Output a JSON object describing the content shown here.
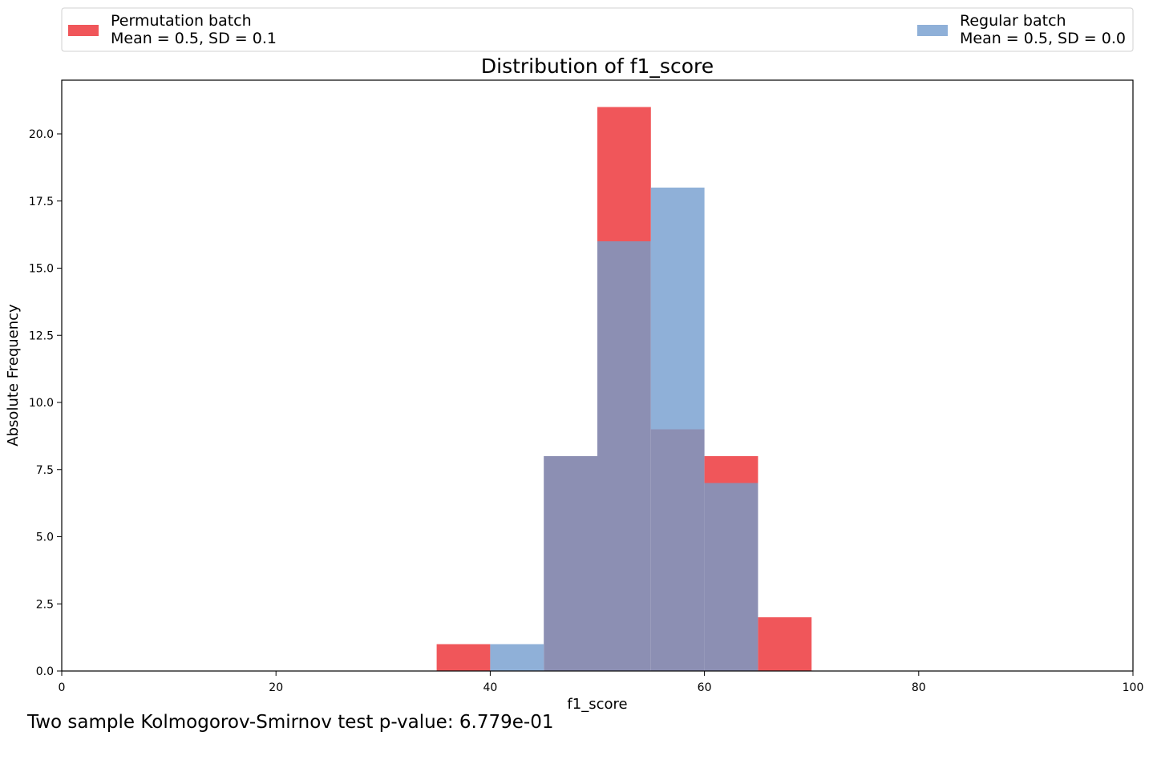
{
  "chart_data": {
    "type": "histogram",
    "title": "Distribution of f1_score",
    "xlabel": "f1_score",
    "ylabel": "Absolute Frequency",
    "xlim": [
      0,
      100
    ],
    "ylim": [
      0,
      22
    ],
    "xticks": [
      0,
      20,
      40,
      60,
      80,
      100
    ],
    "xtick_labels": [
      "0",
      "20",
      "40",
      "60",
      "80",
      "100"
    ],
    "yticks": [
      0,
      2.5,
      5,
      7.5,
      10,
      12.5,
      15,
      17.5,
      20
    ],
    "ytick_labels": [
      "0.0",
      "2.5",
      "5.0",
      "7.5",
      "10.0",
      "12.5",
      "15.0",
      "17.5",
      "20.0"
    ],
    "legend_position": "top",
    "series": [
      {
        "name": "Permutation batch",
        "stats": "Mean = 0.5, SD = 0.1",
        "color": "#f0565a",
        "bins": [
          {
            "x0": 35,
            "x1": 40,
            "count": 1
          },
          {
            "x0": 45,
            "x1": 50,
            "count": 8
          },
          {
            "x0": 50,
            "x1": 55,
            "count": 21
          },
          {
            "x0": 55,
            "x1": 60,
            "count": 9
          },
          {
            "x0": 60,
            "x1": 65,
            "count": 8
          },
          {
            "x0": 65,
            "x1": 70,
            "count": 2
          }
        ]
      },
      {
        "name": "Regular batch",
        "stats": "Mean = 0.5, SD = 0.0",
        "color": "#8fb0d8",
        "bins": [
          {
            "x0": 40,
            "x1": 45,
            "count": 1
          },
          {
            "x0": 45,
            "x1": 50,
            "count": 8
          },
          {
            "x0": 50,
            "x1": 55,
            "count": 16
          },
          {
            "x0": 55,
            "x1": 60,
            "count": 18
          },
          {
            "x0": 60,
            "x1": 65,
            "count": 7
          }
        ]
      }
    ],
    "overlap_color": "#8c8fb3"
  },
  "footnote": "Two sample Kolmogorov-Smirnov test p-value: 6.779e-01"
}
